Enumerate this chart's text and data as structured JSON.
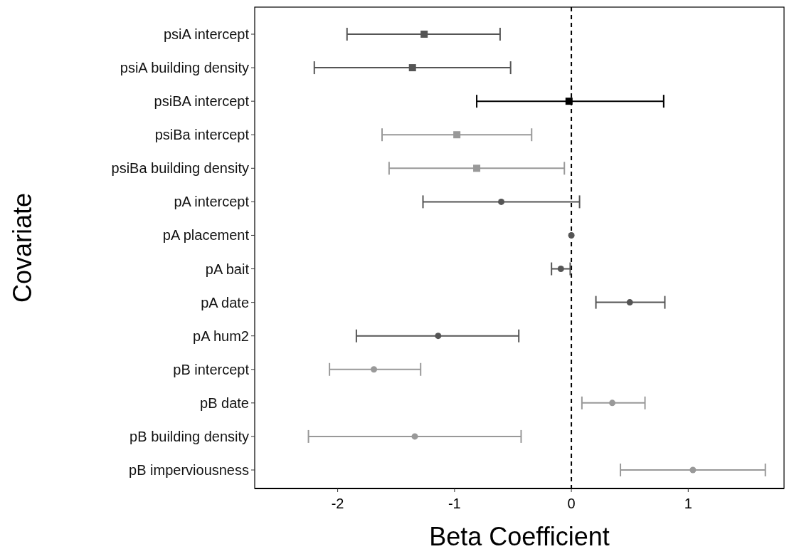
{
  "chart_data": {
    "type": "scatter",
    "orientation": "horizontal",
    "xlabel": "Beta Coefficient",
    "ylabel": "Covariate",
    "categories": [
      "psiA intercept",
      "psiA building density",
      "psiBA intercept",
      "psiBa intercept",
      "psiBa building density",
      "pA intercept",
      "pA placement",
      "pA bait",
      "pA date",
      "pA hum2",
      "pB intercept",
      "pB date",
      "pB building density",
      "pB imperviousness"
    ],
    "xlim": [
      -2.71,
      1.82
    ],
    "xticks": [
      -2,
      -1,
      0,
      1
    ],
    "grid": false,
    "ref_lines": [
      {
        "axis": "x",
        "value": 0,
        "color": "#000000",
        "line_style": "dashed"
      }
    ],
    "series": [
      {
        "color": "#555555",
        "marker": "square",
        "values": [
          -1.26,
          -1.36,
          null,
          null,
          null,
          null,
          null,
          null,
          null,
          null,
          null,
          null,
          null,
          null
        ],
        "errors": [
          [
            -1.92,
            -0.61
          ],
          [
            -2.2,
            -0.52
          ],
          null,
          null,
          null,
          null,
          null,
          null,
          null,
          null,
          null,
          null,
          null,
          null
        ]
      },
      {
        "color": "#000000",
        "marker": "square",
        "values": [
          null,
          null,
          -0.02,
          null,
          null,
          null,
          null,
          null,
          null,
          null,
          null,
          null,
          null,
          null
        ],
        "errors": [
          null,
          null,
          [
            -0.81,
            0.79
          ],
          null,
          null,
          null,
          null,
          null,
          null,
          null,
          null,
          null,
          null,
          null
        ]
      },
      {
        "color": "#999999",
        "marker": "square",
        "values": [
          null,
          null,
          null,
          -0.98,
          -0.81,
          null,
          null,
          null,
          null,
          null,
          null,
          null,
          null,
          null
        ],
        "errors": [
          null,
          null,
          null,
          [
            -1.62,
            -0.34
          ],
          [
            -1.56,
            -0.06
          ],
          null,
          null,
          null,
          null,
          null,
          null,
          null,
          null,
          null
        ]
      },
      {
        "color": "#555555",
        "marker": "circle",
        "values": [
          null,
          null,
          null,
          null,
          null,
          -0.6,
          0.0,
          -0.09,
          0.5,
          -1.14,
          null,
          null,
          null,
          null
        ],
        "errors": [
          null,
          null,
          null,
          null,
          null,
          [
            -1.27,
            0.07
          ],
          null,
          [
            -0.17,
            -0.01
          ],
          [
            0.21,
            0.8
          ],
          [
            -1.84,
            -0.45
          ],
          null,
          null,
          null,
          null
        ]
      },
      {
        "color": "#999999",
        "marker": "circle",
        "values": [
          null,
          null,
          null,
          null,
          null,
          null,
          null,
          null,
          null,
          null,
          -1.69,
          0.35,
          -1.34,
          1.04
        ],
        "errors": [
          null,
          null,
          null,
          null,
          null,
          null,
          null,
          null,
          null,
          null,
          [
            -2.07,
            -1.29
          ],
          [
            0.09,
            0.63
          ],
          [
            -2.25,
            -0.43
          ],
          [
            0.42,
            1.66
          ]
        ]
      }
    ]
  }
}
